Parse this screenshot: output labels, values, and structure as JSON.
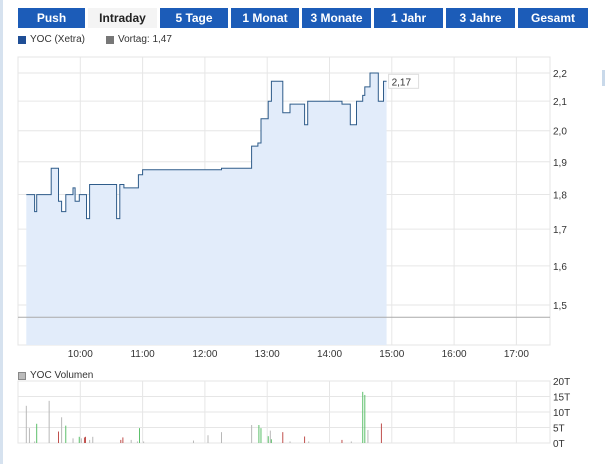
{
  "tabs": [
    {
      "label": "Push",
      "active": false
    },
    {
      "label": "Intraday",
      "active": true
    },
    {
      "label": "5 Tage",
      "active": false
    },
    {
      "label": "1 Monat",
      "active": false
    },
    {
      "label": "3 Monate",
      "active": false
    },
    {
      "label": "1 Jahr",
      "active": false
    },
    {
      "label": "3 Jahre",
      "active": false
    },
    {
      "label": "Gesamt",
      "active": false
    }
  ],
  "colors": {
    "tab": "#1c5cb8",
    "line": "#2f5c8a",
    "fill": "#e2ecfa",
    "up": "#5cbf6a",
    "down": "#c0504d",
    "neutral": "#b8b8b8",
    "prev": "#777777"
  },
  "chart_data": [
    {
      "type": "line",
      "legend": [
        {
          "label": "YOC (Xetra)",
          "color": "#1f4e96"
        },
        {
          "label": "Vortag: 1,47",
          "color": "#777777"
        }
      ],
      "y_scale": "log",
      "ylim": [
        1.41,
        2.25
      ],
      "xlim": [
        "09:00",
        "17:30"
      ],
      "grid": true,
      "x_ticks": [
        "10:00",
        "11:00",
        "12:00",
        "13:00",
        "14:00",
        "15:00",
        "16:00",
        "17:00"
      ],
      "y_ticks": [
        {
          "v": 2.2,
          "label": "2,2"
        },
        {
          "v": 2.1,
          "label": "2,1"
        },
        {
          "v": 2.0,
          "label": "2,0"
        },
        {
          "v": 1.9,
          "label": "1,9"
        },
        {
          "v": 1.8,
          "label": "1,8"
        },
        {
          "v": 1.7,
          "label": "1,7"
        },
        {
          "v": 1.6,
          "label": "1,6"
        },
        {
          "v": 1.5,
          "label": "1,5"
        }
      ],
      "previous_close": 1.47,
      "last_label": "2,17",
      "points": [
        [
          "09:08",
          1.8
        ],
        [
          "09:16",
          1.75
        ],
        [
          "09:18",
          1.8
        ],
        [
          "09:32",
          1.88
        ],
        [
          "09:39",
          1.78
        ],
        [
          "09:42",
          1.75
        ],
        [
          "09:46",
          1.8
        ],
        [
          "09:53",
          1.82
        ],
        [
          "09:55",
          1.78
        ],
        [
          "09:59",
          1.8
        ],
        [
          "10:06",
          1.73
        ],
        [
          "10:09",
          1.83
        ],
        [
          "10:35",
          1.73
        ],
        [
          "10:38",
          1.83
        ],
        [
          "10:42",
          1.82
        ],
        [
          "10:56",
          1.86
        ],
        [
          "11:00",
          1.875
        ],
        [
          "12:16",
          1.88
        ],
        [
          "12:45",
          1.95
        ],
        [
          "12:51",
          1.96
        ],
        [
          "12:54",
          2.04
        ],
        [
          "13:01",
          2.1
        ],
        [
          "13:04",
          2.17
        ],
        [
          "13:15",
          2.06
        ],
        [
          "13:22",
          2.09
        ],
        [
          "13:36",
          2.02
        ],
        [
          "13:39",
          2.1
        ],
        [
          "14:12",
          2.09
        ],
        [
          "14:20",
          2.02
        ],
        [
          "14:26",
          2.1
        ],
        [
          "14:32",
          2.12
        ],
        [
          "14:34",
          2.15
        ],
        [
          "14:39",
          2.2
        ],
        [
          "14:47",
          2.1
        ],
        [
          "14:52",
          2.17
        ],
        [
          "14:55",
          2.17
        ]
      ]
    },
    {
      "type": "bar",
      "legend": [
        {
          "label": "YOC Volumen",
          "color": "#999999"
        }
      ],
      "ylim": [
        0,
        20
      ],
      "y_ticks": [
        {
          "v": 20,
          "label": "20T"
        },
        {
          "v": 15,
          "label": "15T"
        },
        {
          "v": 10,
          "label": "10T"
        },
        {
          "v": 5,
          "label": "5T"
        },
        {
          "v": 0,
          "label": "0T"
        }
      ],
      "bars": [
        [
          "09:08",
          12,
          "neutral"
        ],
        [
          "09:11",
          4.8,
          "neutral"
        ],
        [
          "09:16",
          0.5,
          "neutral"
        ],
        [
          "09:18",
          6.2,
          "up"
        ],
        [
          "09:30",
          13.6,
          "neutral"
        ],
        [
          "09:39",
          3.7,
          "down"
        ],
        [
          "09:42",
          8.3,
          "neutral"
        ],
        [
          "09:46",
          5.6,
          "up"
        ],
        [
          "09:53",
          1.5,
          "neutral"
        ],
        [
          "09:59",
          2,
          "up"
        ],
        [
          "10:01",
          1.5,
          "neutral"
        ],
        [
          "10:04",
          1.8,
          "down"
        ],
        [
          "10:05",
          2,
          "down"
        ],
        [
          "10:09",
          1,
          "neutral"
        ],
        [
          "10:12",
          2,
          "neutral"
        ],
        [
          "10:39",
          1,
          "down"
        ],
        [
          "10:41",
          1.8,
          "down"
        ],
        [
          "10:49",
          1,
          "neutral"
        ],
        [
          "10:55",
          0.5,
          "neutral"
        ],
        [
          "10:57",
          4.8,
          "up"
        ],
        [
          "11:01",
          0.5,
          "neutral"
        ],
        [
          "11:49",
          0.8,
          "neutral"
        ],
        [
          "12:03",
          2.5,
          "neutral"
        ],
        [
          "12:16",
          3.5,
          "neutral"
        ],
        [
          "12:45",
          5.8,
          "neutral"
        ],
        [
          "12:52",
          5.8,
          "up"
        ],
        [
          "12:54",
          4.8,
          "up"
        ],
        [
          "13:01",
          2.2,
          "up"
        ],
        [
          "13:03",
          4,
          "neutral"
        ],
        [
          "13:04",
          1.2,
          "up"
        ],
        [
          "13:15",
          3.5,
          "down"
        ],
        [
          "13:22",
          0.5,
          "neutral"
        ],
        [
          "13:36",
          2.1,
          "down"
        ],
        [
          "13:40",
          0.5,
          "neutral"
        ],
        [
          "14:12",
          1,
          "down"
        ],
        [
          "14:21",
          0.5,
          "neutral"
        ],
        [
          "14:32",
          16.5,
          "up"
        ],
        [
          "14:34",
          15.5,
          "up"
        ],
        [
          "14:37",
          4.2,
          "neutral"
        ],
        [
          "14:50",
          6.3,
          "down"
        ]
      ]
    }
  ]
}
